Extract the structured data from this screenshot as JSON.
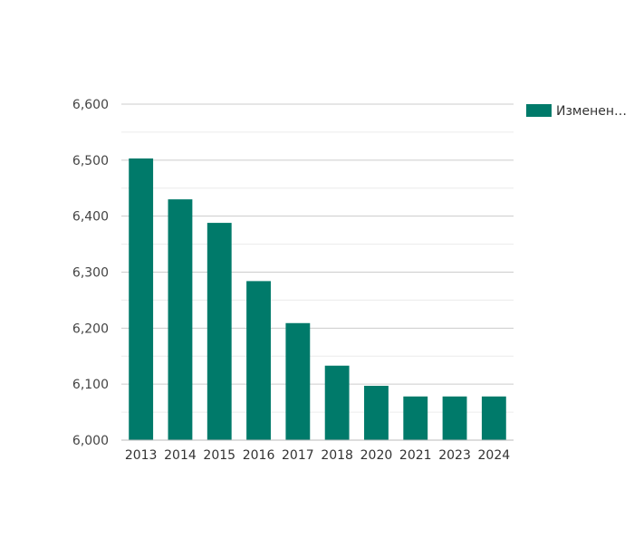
{
  "chart_data": {
    "type": "bar",
    "categories": [
      "2013",
      "2014",
      "2015",
      "2016",
      "2017",
      "2018",
      "2020",
      "2021",
      "2023",
      "2024"
    ],
    "series": [
      {
        "name": "Изменен…",
        "values": [
          6503,
          6430,
          6388,
          6284,
          6209,
          6133,
          6097,
          6078,
          6078,
          6078
        ],
        "color": "#007a6a"
      }
    ],
    "ylim": [
      6000,
      6600
    ],
    "yticks": [
      "6,000",
      "6,100",
      "6,200",
      "6,300",
      "6,400",
      "6,500",
      "6,600"
    ],
    "grid": true,
    "legend_position": "right"
  }
}
